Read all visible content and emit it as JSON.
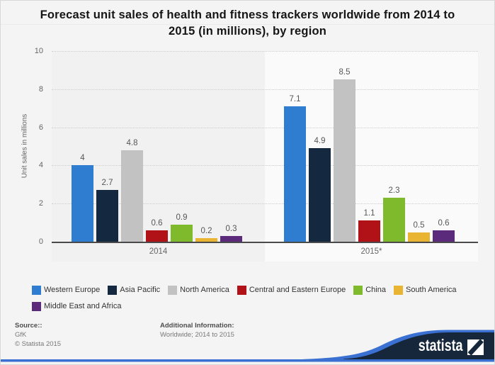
{
  "header": {
    "title_line1": "Forecast unit sales of health and fitness trackers worldwide from 2014 to",
    "title_line2": "2015 (in millions), by region"
  },
  "chart_data": {
    "type": "bar",
    "title": "Forecast unit sales of health and fitness trackers worldwide from 2014 to 2015 (in millions), by region",
    "ylabel": "Unit sales in millions",
    "xlabel": "",
    "ylim": [
      0,
      10
    ],
    "yticks": [
      0,
      2,
      4,
      6,
      8,
      10
    ],
    "grid": true,
    "legend_position": "bottom",
    "categories": [
      "2014",
      "2015*"
    ],
    "series": [
      {
        "name": "Western Europe",
        "color": "#2e7dd1",
        "values": [
          4,
          7.1
        ]
      },
      {
        "name": "Asia Pacific",
        "color": "#14283f",
        "values": [
          2.7,
          4.9
        ]
      },
      {
        "name": "North America",
        "color": "#c2c2c2",
        "values": [
          4.8,
          8.5
        ]
      },
      {
        "name": "Central and Eastern Europe",
        "color": "#b01217",
        "values": [
          0.6,
          1.1
        ]
      },
      {
        "name": "China",
        "color": "#7eba2b",
        "values": [
          0.9,
          2.3
        ]
      },
      {
        "name": "South America",
        "color": "#e9b432",
        "values": [
          0.2,
          0.5
        ]
      },
      {
        "name": "Middle East and Africa",
        "color": "#5c2a7a",
        "values": [
          0.3,
          0.6
        ]
      }
    ]
  },
  "footer": {
    "source_label": "Source::",
    "source_value": "GfK",
    "copyright": "© Statista 2015",
    "additional_label": "Additional Information:",
    "additional_value": "Worldwide; 2014 to 2015"
  },
  "brand": {
    "wordmark": "statista",
    "navy": "#16273b",
    "blue": "#3a70d1"
  }
}
